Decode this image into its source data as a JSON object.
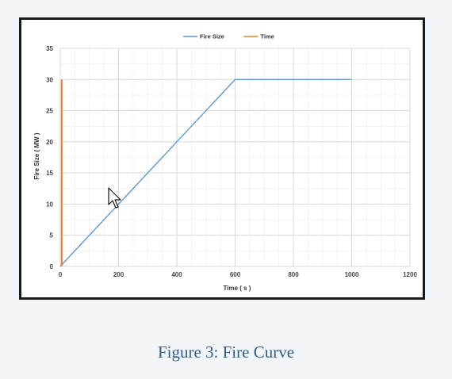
{
  "caption": "Figure 3: Fire Curve",
  "chart_data": {
    "type": "line",
    "title": "",
    "xlabel": "Time ( s )",
    "ylabel": "Fire Size ( MW )",
    "xlim": [
      0,
      1200
    ],
    "ylim": [
      0,
      35
    ],
    "xticks": [
      0,
      200,
      400,
      600,
      800,
      1000,
      1200
    ],
    "yticks": [
      0,
      5,
      10,
      15,
      20,
      25,
      30,
      35
    ],
    "grid": true,
    "legend_position": "top",
    "series": [
      {
        "name": "Fire Size",
        "color": "#5b9bd5",
        "x": [
          0,
          600,
          1000
        ],
        "y": [
          0,
          30,
          30
        ]
      },
      {
        "name": "Time",
        "color": "#ed7d31",
        "x": [
          5,
          5
        ],
        "y": [
          0,
          30
        ]
      }
    ]
  },
  "cursor_icon": "mouse-pointer-icon"
}
